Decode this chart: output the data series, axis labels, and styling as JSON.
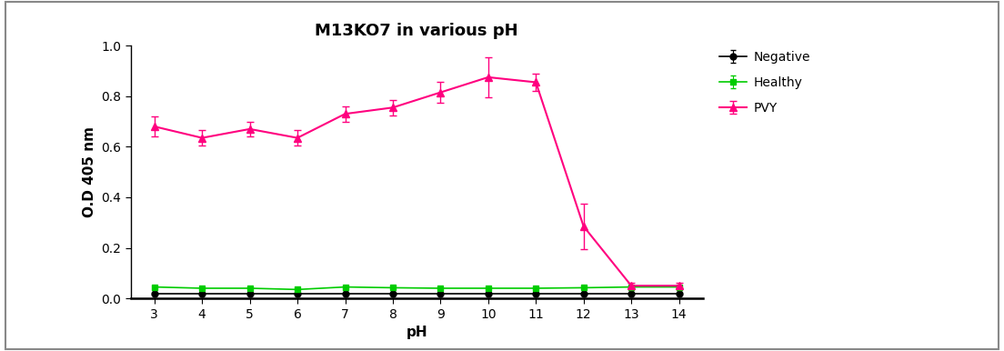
{
  "title": "M13KO7 in various pH",
  "xlabel": "pH",
  "ylabel": "O.D 405 nm",
  "x": [
    3,
    4,
    5,
    6,
    7,
    8,
    9,
    10,
    11,
    12,
    13,
    14
  ],
  "pvy_y": [
    0.68,
    0.635,
    0.67,
    0.635,
    0.73,
    0.755,
    0.815,
    0.875,
    0.855,
    0.285,
    0.05,
    0.05
  ],
  "pvy_err": [
    0.04,
    0.03,
    0.03,
    0.03,
    0.03,
    0.03,
    0.04,
    0.08,
    0.035,
    0.09,
    0.01,
    0.01
  ],
  "healthy_y": [
    0.045,
    0.04,
    0.04,
    0.035,
    0.045,
    0.042,
    0.04,
    0.04,
    0.04,
    0.042,
    0.045,
    0.045
  ],
  "healthy_err": [
    0.005,
    0.004,
    0.004,
    0.004,
    0.004,
    0.004,
    0.004,
    0.004,
    0.004,
    0.004,
    0.005,
    0.005
  ],
  "negative_y": [
    0.02,
    0.02,
    0.02,
    0.02,
    0.02,
    0.02,
    0.02,
    0.02,
    0.02,
    0.02,
    0.02,
    0.02
  ],
  "negative_err": [
    0.002,
    0.002,
    0.002,
    0.002,
    0.002,
    0.002,
    0.002,
    0.002,
    0.002,
    0.002,
    0.002,
    0.002
  ],
  "pvy_color": "#FF007F",
  "healthy_color": "#00CC00",
  "negative_color": "#000000",
  "ylim": [
    0.0,
    1.0
  ],
  "xlim": [
    2.5,
    14.5
  ],
  "title_fontsize": 13,
  "label_fontsize": 11,
  "tick_fontsize": 10,
  "legend_fontsize": 10
}
